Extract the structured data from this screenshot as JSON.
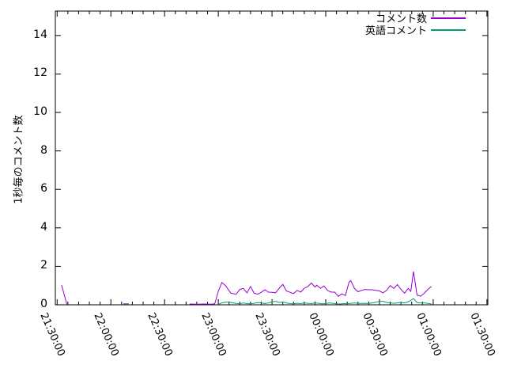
{
  "chart_data": {
    "type": "line",
    "title": "",
    "xlabel": "",
    "ylabel": "1秒毎のコメント数",
    "grid": false,
    "legend_position": "top-right-inside",
    "x_tick_labels": [
      "21:30:00",
      "22:00:00",
      "22:30:00",
      "23:00:00",
      "23:30:00",
      "00:00:00",
      "00:30:00",
      "01:00:00",
      "01:30:00"
    ],
    "x_tick_minutes": [
      0,
      30,
      60,
      90,
      120,
      150,
      180,
      210,
      240
    ],
    "x_minor_tick_interval_minutes": 6,
    "x_range_minutes": [
      -1,
      240.5
    ],
    "y_ticks": [
      0,
      2,
      4,
      6,
      8,
      10,
      12,
      14
    ],
    "ylim": [
      0,
      15.27
    ],
    "series": [
      {
        "name": "コメント数",
        "color": "#9400D3",
        "points": [
          [
            2.5,
            1.03
          ],
          [
            5.5,
            0
          ],
          null,
          [
            37,
            0.05
          ],
          [
            40,
            0.05
          ],
          null,
          [
            74,
            0.04
          ],
          [
            78,
            0.03
          ],
          [
            82,
            0.04
          ],
          [
            86,
            0.03
          ],
          [
            88,
            0.05
          ],
          [
            90,
            0.7
          ],
          [
            92,
            1.16
          ],
          [
            94,
            1.0
          ],
          [
            97,
            0.6
          ],
          [
            100,
            0.55
          ],
          [
            102,
            0.8
          ],
          [
            104,
            0.85
          ],
          [
            106,
            0.62
          ],
          [
            108,
            0.95
          ],
          [
            110,
            0.6
          ],
          [
            112,
            0.55
          ],
          [
            114,
            0.65
          ],
          [
            116,
            0.78
          ],
          [
            118,
            0.66
          ],
          [
            120,
            0.65
          ],
          [
            122,
            0.62
          ],
          [
            124,
            0.86
          ],
          [
            126,
            1.06
          ],
          [
            128,
            0.72
          ],
          [
            130,
            0.65
          ],
          [
            132,
            0.58
          ],
          [
            134,
            0.75
          ],
          [
            136,
            0.66
          ],
          [
            138,
            0.86
          ],
          [
            140,
            0.95
          ],
          [
            142,
            1.13
          ],
          [
            144,
            0.92
          ],
          [
            145,
            1.02
          ],
          [
            147,
            0.85
          ],
          [
            149,
            0.98
          ],
          [
            151,
            0.74
          ],
          [
            153,
            0.66
          ],
          [
            155,
            0.66
          ],
          [
            157,
            0.44
          ],
          [
            159,
            0.57
          ],
          [
            161,
            0.48
          ],
          [
            163,
            1.18
          ],
          [
            164,
            1.26
          ],
          [
            166,
            0.85
          ],
          [
            168,
            0.68
          ],
          [
            170,
            0.75
          ],
          [
            172,
            0.8
          ],
          [
            174,
            0.78
          ],
          [
            176,
            0.78
          ],
          [
            178,
            0.75
          ],
          [
            180,
            0.72
          ],
          [
            182,
            0.62
          ],
          [
            184,
            0.75
          ],
          [
            186,
            1.0
          ],
          [
            188,
            0.85
          ],
          [
            190,
            1.05
          ],
          [
            192,
            0.8
          ],
          [
            194,
            0.6
          ],
          [
            196,
            0.85
          ],
          [
            197.5,
            0.7
          ],
          [
            199,
            1.73
          ],
          [
            201,
            0.5
          ],
          [
            203,
            0.45
          ],
          [
            205,
            0.6
          ],
          [
            207,
            0.8
          ],
          [
            209,
            0.95
          ]
        ]
      },
      {
        "name": "英語コメント",
        "color": "#009E73",
        "points": [
          [
            90,
            0.02
          ],
          [
            92,
            0.1
          ],
          [
            94,
            0.13
          ],
          [
            96,
            0.15
          ],
          [
            98,
            0.1
          ],
          [
            100,
            0.07
          ],
          [
            102,
            0.05
          ],
          [
            104,
            0.1
          ],
          [
            106,
            0.06
          ],
          [
            108,
            0.05
          ],
          [
            110,
            0.08
          ],
          [
            112,
            0.12
          ],
          [
            114,
            0.1
          ],
          [
            116,
            0.06
          ],
          [
            118,
            0.1
          ],
          [
            120,
            0.15
          ],
          [
            122,
            0.18
          ],
          [
            124,
            0.12
          ],
          [
            126,
            0.15
          ],
          [
            128,
            0.1
          ],
          [
            130,
            0.06
          ],
          [
            132,
            0.05
          ],
          [
            134,
            0.08
          ],
          [
            136,
            0.06
          ],
          [
            138,
            0.1
          ],
          [
            140,
            0.08
          ],
          [
            142,
            0.06
          ],
          [
            144,
            0.1
          ],
          [
            146,
            0.08
          ],
          [
            148,
            0.05
          ],
          [
            150,
            0.06
          ],
          [
            152,
            0.1
          ],
          [
            154,
            0.08
          ],
          [
            156,
            0.05
          ],
          [
            158,
            0.04
          ],
          [
            160,
            0.06
          ],
          [
            162,
            0.05
          ],
          [
            164,
            0.08
          ],
          [
            166,
            0.1
          ],
          [
            168,
            0.07
          ],
          [
            170,
            0.07
          ],
          [
            172,
            0.08
          ],
          [
            174,
            0.07
          ],
          [
            176,
            0.1
          ],
          [
            178,
            0.13
          ],
          [
            180,
            0.18
          ],
          [
            182,
            0.18
          ],
          [
            184,
            0.12
          ],
          [
            186,
            0.1
          ],
          [
            188,
            0.08
          ],
          [
            190,
            0.1
          ],
          [
            192,
            0.12
          ],
          [
            194,
            0.1
          ],
          [
            196,
            0.15
          ],
          [
            199,
            0.32
          ],
          [
            201,
            0.12
          ],
          [
            203,
            0.1
          ],
          [
            205,
            0.1
          ],
          [
            207,
            0.08
          ],
          [
            209,
            0.04
          ]
        ]
      }
    ]
  },
  "colors": {
    "axis": "#000000",
    "background": "#ffffff",
    "series1": "#9400D3",
    "series2": "#009E73"
  }
}
